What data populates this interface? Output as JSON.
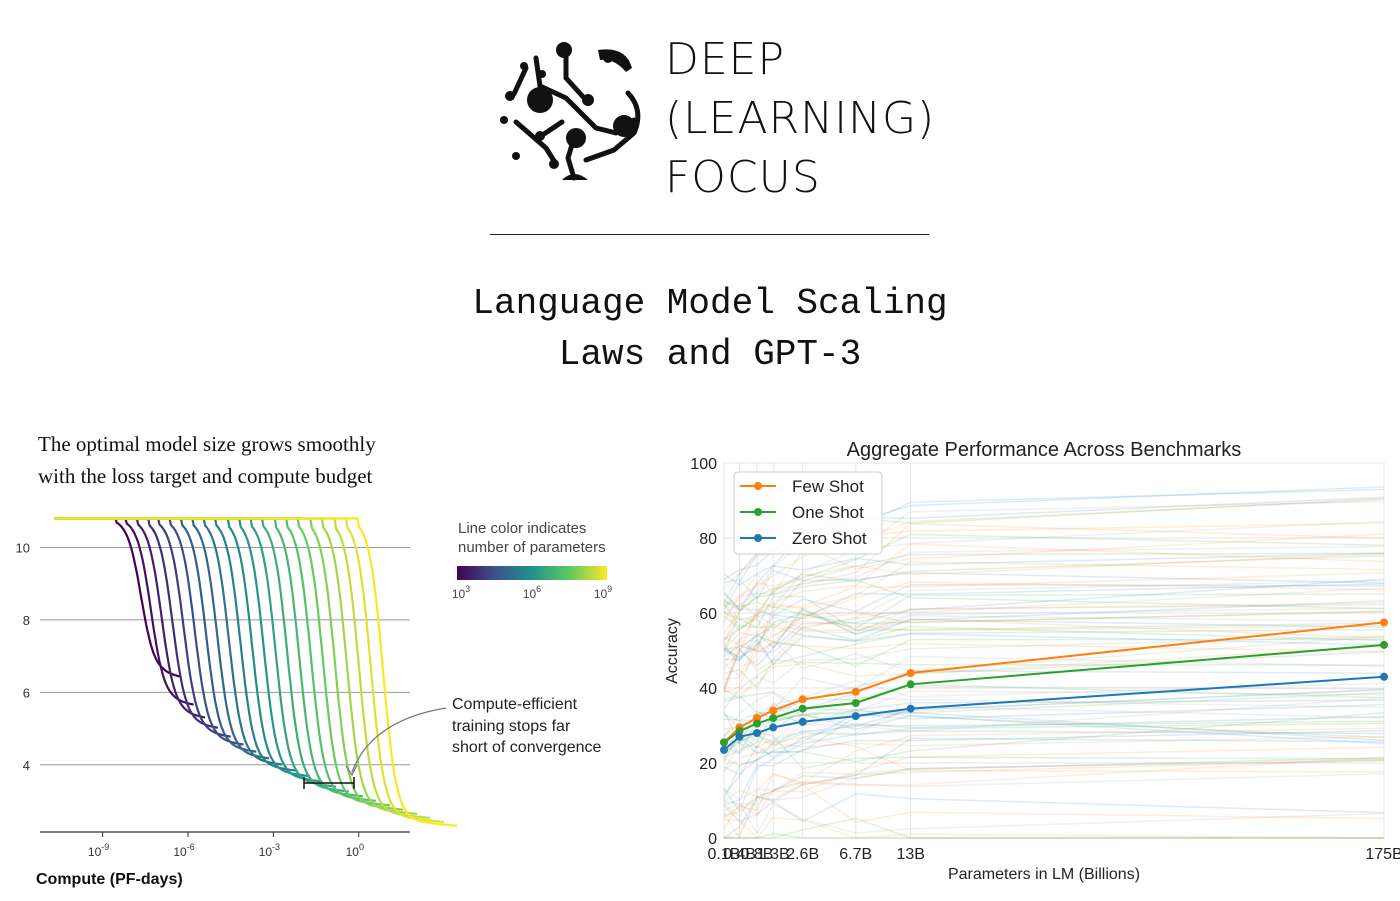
{
  "logo": {
    "lines": [
      "DEEP",
      "(LEARNING)",
      "FOCUS"
    ]
  },
  "title": {
    "line1": "Language Model Scaling",
    "line2": "Laws and GPT-3"
  },
  "colors": {
    "few_shot": "#ff7f0e",
    "one_shot": "#2ca02c",
    "zero_shot": "#1f77b4",
    "text": "#111111"
  },
  "chart_data": [
    {
      "type": "line",
      "caption": [
        "The optimal model size grows smoothly",
        "with the loss target and compute budget"
      ],
      "xlabel": "Compute (PF-days)",
      "ylabel": "",
      "x_scale": "log",
      "xlim_log10": [
        -11.2,
        1.8
      ],
      "ylim": [
        2.2,
        11.2
      ],
      "y_ticks": [
        "4",
        "6",
        "8",
        "10"
      ],
      "x_ticks": [
        {
          "base": "10",
          "exp": "-9",
          "value": -9
        },
        {
          "base": "10",
          "exp": "-6",
          "value": -6
        },
        {
          "base": "10",
          "exp": "-3",
          "value": -3
        },
        {
          "base": "10",
          "exp": "0",
          "value": 0
        }
      ],
      "color_legend": {
        "title": [
          "Line color indicates",
          "number of parameters"
        ],
        "ticks": [
          {
            "base": "10",
            "exp": "3"
          },
          {
            "base": "10",
            "exp": "6"
          },
          {
            "base": "10",
            "exp": "9"
          }
        ],
        "palette": "viridis"
      },
      "annotation": [
        "Compute-efficient",
        "training stops far",
        "short of convergence"
      ],
      "curves": {
        "count": 22,
        "initial_loss": 10.8,
        "drop_start_log10": [
          -8.5,
          0.0
        ],
        "plateau_loss": [
          6.5,
          2.45
        ],
        "palette_values": [
          0.0,
          1.0
        ]
      }
    },
    {
      "type": "line",
      "title": "Aggregate Performance Across Benchmarks",
      "xlabel": "Parameters in LM (Billions)",
      "ylabel": "Accuracy",
      "categories": [
        "0.1B",
        "0.4B",
        "0.8B",
        "1.3B",
        "2.6B",
        "6.7B",
        "13B",
        "175B"
      ],
      "x": [
        0.125,
        0.35,
        0.76,
        1.3,
        2.7,
        6.7,
        13,
        175
      ],
      "ylim": [
        0,
        100
      ],
      "y_ticks": [
        "0",
        "20",
        "40",
        "60",
        "80",
        "100"
      ],
      "series": [
        {
          "name": "Few Shot",
          "color": "#ff7f0e",
          "values": [
            25.5,
            29.5,
            32,
            34,
            37,
            39,
            44,
            57.5
          ]
        },
        {
          "name": "One Shot",
          "color": "#2ca02c",
          "values": [
            25.5,
            28.5,
            30.5,
            32,
            34.5,
            36,
            41,
            51.5
          ]
        },
        {
          "name": "Zero Shot",
          "color": "#1f77b4",
          "values": [
            23.5,
            27,
            28,
            29.5,
            31,
            32.5,
            34.5,
            43
          ]
        }
      ],
      "background_tasks": {
        "count": 90,
        "opacity": 0.15
      }
    }
  ]
}
